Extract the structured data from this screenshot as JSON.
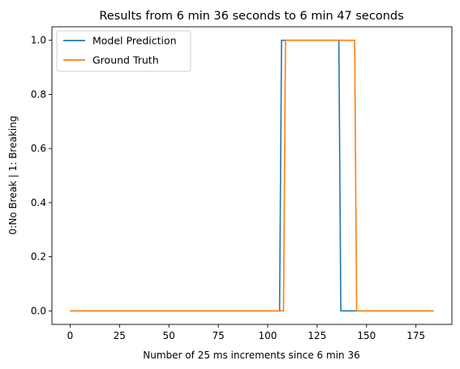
{
  "chart_data": {
    "type": "line",
    "title": "Results from 6 min 36 seconds to 6 min 47 seconds",
    "xlabel": "Number of 25 ms increments since 6 min 36",
    "ylabel": "0:No Break | 1: Breaking",
    "xlim": [
      -9.2,
      193.2
    ],
    "ylim": [
      -0.05,
      1.05
    ],
    "xticks": [
      0,
      25,
      50,
      75,
      100,
      125,
      150,
      175
    ],
    "yticks": [
      0.0,
      0.2,
      0.4,
      0.6,
      0.8,
      1.0
    ],
    "xtick_labels": [
      "0",
      "25",
      "50",
      "75",
      "100",
      "125",
      "150",
      "175"
    ],
    "ytick_labels": [
      "0.0",
      "0.2",
      "0.4",
      "0.6",
      "0.8",
      "1.0"
    ],
    "grid": false,
    "legend_position": "upper-left",
    "series": [
      {
        "name": "Model Prediction",
        "color": "#1f77b4",
        "x": [
          0,
          106,
          107,
          136,
          137,
          184
        ],
        "y": [
          0,
          0,
          1,
          1,
          0,
          0
        ]
      },
      {
        "name": "Ground Truth",
        "color": "#ff7f0e",
        "x": [
          0,
          108,
          109,
          144,
          145,
          184
        ],
        "y": [
          0,
          0,
          1,
          1,
          0,
          0
        ]
      }
    ]
  }
}
